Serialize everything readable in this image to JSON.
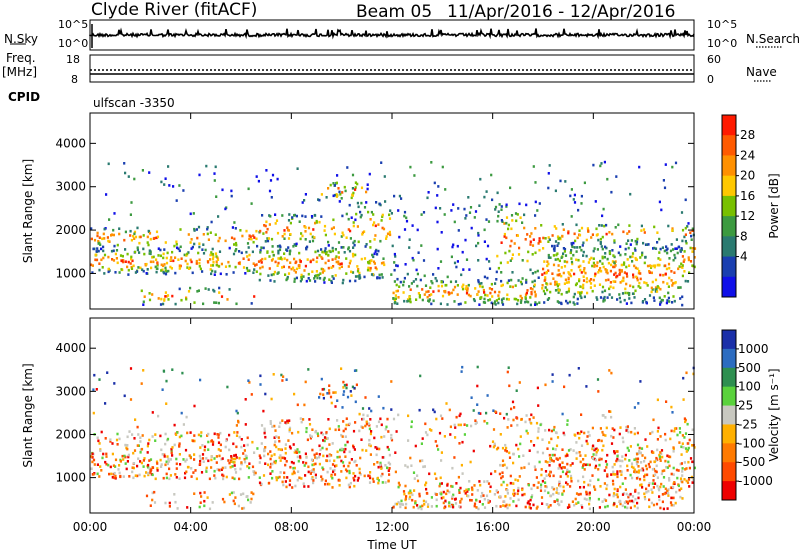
{
  "header": {
    "station": "Clyde River (fitACF)",
    "beam": "Beam 05",
    "date_range": "11/Apr/2016 - 12/Apr/2016"
  },
  "top_panels": {
    "nsky_label": "N.Sky",
    "nsearch_label": "N.Search",
    "left_ticks_count": [
      "10^5",
      "10^0"
    ],
    "right_ticks_count": [
      "10^5",
      "10^0"
    ],
    "freq_label_1": "Freq.",
    "freq_label_2": "[MHz]",
    "freq_ticks": [
      "18",
      "8"
    ],
    "nave_label": "Nave",
    "nave_ticks": [
      "60",
      "0"
    ],
    "cpid_label": "CPID",
    "cpid_value": "ulfscan -3350"
  },
  "chart_data": [
    {
      "type": "heatmap",
      "quantity": "Power",
      "ylabel": "Slant Range [km]",
      "xlabel": "Time UT",
      "ylim": [
        180,
        4700
      ],
      "xlim_hours": [
        0,
        24
      ],
      "yticks": [
        "1000",
        "2000",
        "3000",
        "4000"
      ],
      "xticks": [
        "00:00",
        "04:00",
        "08:00",
        "12:00",
        "16:00",
        "20:00",
        "00:00"
      ],
      "colorbar_label": "Power [dB]",
      "colorbar_ticks": [
        "28",
        "24",
        "20",
        "16",
        "12",
        "8",
        "4"
      ],
      "colorbar_colors": [
        "#ff1a00",
        "#ff5a00",
        "#ff9000",
        "#ffc800",
        "#78c000",
        "#3c9a40",
        "#2a7a70",
        "#1a3fb0",
        "#1010e8"
      ]
    },
    {
      "type": "heatmap",
      "quantity": "Velocity",
      "ylabel": "Slant Range [km]",
      "xlabel": "Time UT",
      "ylim": [
        180,
        4700
      ],
      "xlim_hours": [
        0,
        24
      ],
      "yticks": [
        "1000",
        "2000",
        "3000",
        "4000"
      ],
      "xticks": [
        "00:00",
        "04:00",
        "08:00",
        "12:00",
        "16:00",
        "20:00",
        "00:00"
      ],
      "colorbar_label": "Velocity [m s^-1]",
      "colorbar_ticks": [
        "1000",
        "500",
        "100",
        "25",
        "-25",
        "-100",
        "-500",
        "-1000"
      ],
      "colorbar_colors": [
        "#1a2fa8",
        "#2c6cc0",
        "#2e8f50",
        "#5ad23c",
        "#c8c8c0",
        "#ffb000",
        "#ff7a00",
        "#ff4a00",
        "#ee0000"
      ]
    }
  ]
}
